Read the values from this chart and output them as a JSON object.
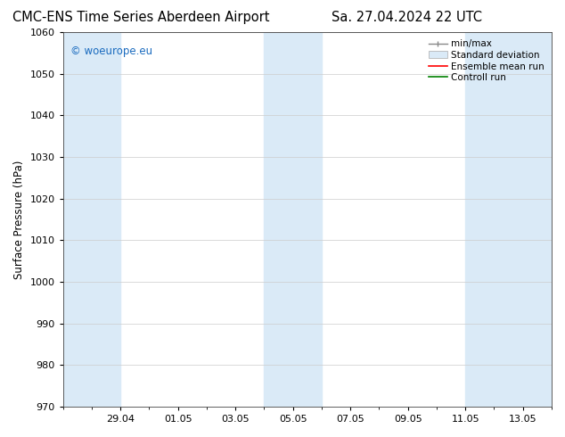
{
  "title_left": "CMC-ENS Time Series Aberdeen Airport",
  "title_right": "Sa. 27.04.2024 22 UTC",
  "ylabel": "Surface Pressure (hPa)",
  "ylim": [
    970,
    1060
  ],
  "yticks": [
    970,
    980,
    990,
    1000,
    1010,
    1020,
    1030,
    1040,
    1050,
    1060
  ],
  "xtick_labels": [
    "29.04",
    "01.05",
    "03.05",
    "05.05",
    "07.05",
    "09.05",
    "11.05",
    "13.05"
  ],
  "band_color": "#daeaf7",
  "background_color": "#ffffff",
  "watermark_text": "© woeurope.eu",
  "watermark_color": "#1a6bbf",
  "legend_entries": [
    "min/max",
    "Standard deviation",
    "Ensemble mean run",
    "Controll run"
  ],
  "legend_colors": [
    "#aaaaaa",
    "#daeaf7",
    "#ff0000",
    "#008000"
  ],
  "title_fontsize": 10.5,
  "axis_label_fontsize": 8.5,
  "tick_fontsize": 8,
  "legend_fontsize": 7.5
}
